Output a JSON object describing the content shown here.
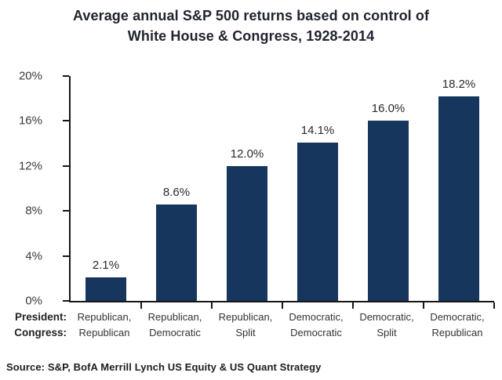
{
  "title": {
    "line1": "Average annual S&P 500 returns based on control of",
    "line2": "White House & Congress, 1928-2014"
  },
  "chart_data": {
    "type": "bar",
    "title": "Average annual S&P 500 returns based on control of White House & Congress, 1928-2014",
    "categories": [
      {
        "president": "Republican,",
        "congress": "Republican"
      },
      {
        "president": "Republican,",
        "congress": "Democratic"
      },
      {
        "president": "Republican,",
        "congress": "Split"
      },
      {
        "president": "Democratic,",
        "congress": "Democratic"
      },
      {
        "president": "Democratic,",
        "congress": "Split"
      },
      {
        "president": "Democratic,",
        "congress": "Republican"
      }
    ],
    "row_headers": [
      "President:",
      "Congress:"
    ],
    "values": [
      2.1,
      8.6,
      12.0,
      14.1,
      16.0,
      18.2
    ],
    "value_labels": [
      "2.1%",
      "8.6%",
      "12.0%",
      "14.1%",
      "16.0%",
      "18.2%"
    ],
    "y_ticks": [
      {
        "value": 0,
        "label": "0%"
      },
      {
        "value": 4,
        "label": "4%"
      },
      {
        "value": 8,
        "label": "8%"
      },
      {
        "value": 12,
        "label": "12%"
      },
      {
        "value": 16,
        "label": "16%"
      },
      {
        "value": 20,
        "label": "20%"
      }
    ],
    "ylim": [
      0,
      20
    ],
    "grid": false,
    "legend": false,
    "bar_color": "#17365D",
    "axis_color": "#161616"
  },
  "source": "Source: S&P, BofA Merrill Lynch US Equity & US Quant Strategy"
}
